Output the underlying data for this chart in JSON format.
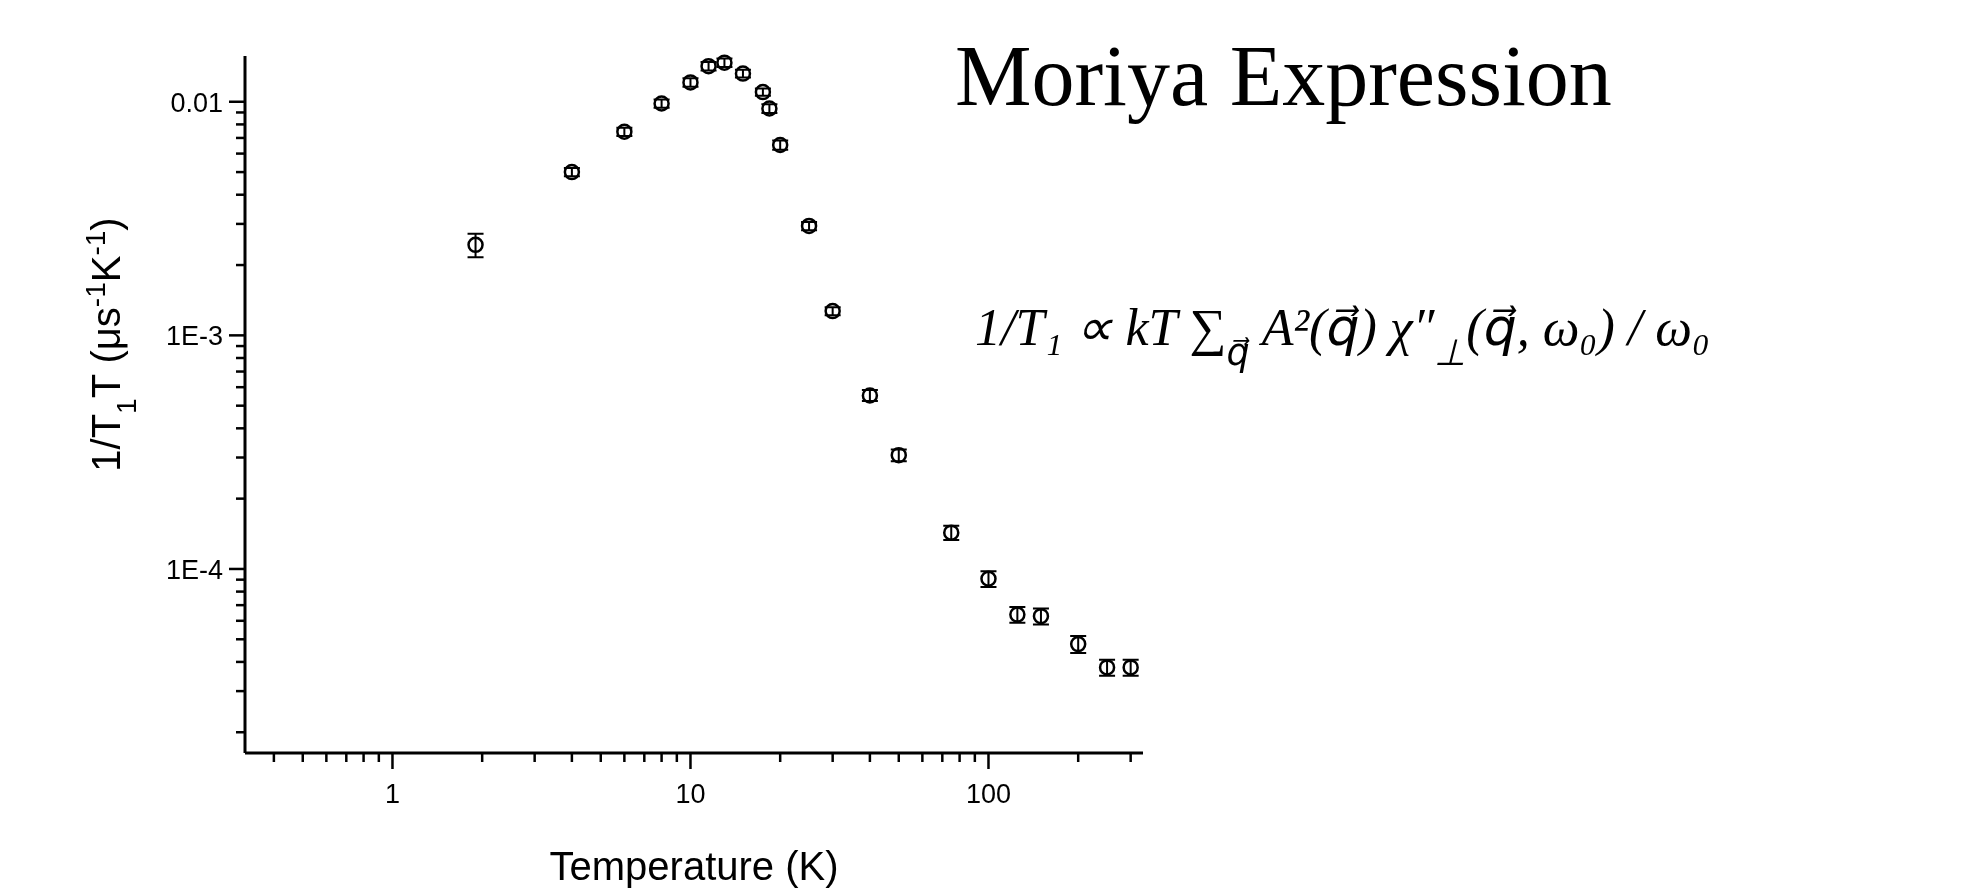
{
  "chart_data": {
    "type": "scatter",
    "title": "Moriya Expression",
    "xlabel": "Temperature (K)",
    "ylabel": "1/T$_{1}$T (μs$^{-1}$K$^{-1}$)",
    "annotations": [
      "1/T₁ ∝ kT ∑$_{q⃗}$ A²(q⃗) χ″$_{⊥}$(q⃗, ω₀) / ω₀"
    ],
    "log": "xy",
    "marker": "circle",
    "grid": false,
    "xlim": [
      0.32,
      330
    ],
    "ylim": [
      1.63e-05,
      0.0157
    ],
    "xticks": [
      {
        "value": 0.4,
        "label": null
      },
      {
        "value": 0.5,
        "label": null
      },
      {
        "value": 0.6,
        "label": null
      },
      {
        "value": 0.7,
        "label": null
      },
      {
        "value": 0.8,
        "label": null
      },
      {
        "value": 0.9,
        "label": null
      },
      1,
      {
        "value": 2,
        "label": null
      },
      {
        "value": 3,
        "label": null
      },
      {
        "value": 4,
        "label": null
      },
      {
        "value": 5,
        "label": null
      },
      {
        "value": 6,
        "label": null
      },
      {
        "value": 7,
        "label": null
      },
      {
        "value": 8,
        "label": null
      },
      {
        "value": 9,
        "label": null
      },
      10,
      {
        "value": 20,
        "label": null
      },
      {
        "value": 30,
        "label": null
      },
      {
        "value": 40,
        "label": null
      },
      {
        "value": 50,
        "label": null
      },
      {
        "value": 60,
        "label": null
      },
      {
        "value": 70,
        "label": null
      },
      {
        "value": 80,
        "label": null
      },
      {
        "value": 90,
        "label": null
      },
      100,
      {
        "value": 200,
        "label": null
      },
      {
        "value": 300,
        "label": null
      }
    ],
    "yticks": [
      {
        "value": 2e-05,
        "label": null
      },
      {
        "value": 3e-05,
        "label": null
      },
      {
        "value": 4e-05,
        "label": null
      },
      {
        "value": 5e-05,
        "label": null
      },
      {
        "value": 6e-05,
        "label": null
      },
      {
        "value": 7e-05,
        "label": null
      },
      {
        "value": 8e-05,
        "label": null
      },
      {
        "value": 9e-05,
        "label": null
      },
      {
        "value": 0.0001,
        "label": "1E-4"
      },
      {
        "value": 0.0002,
        "label": null
      },
      {
        "value": 0.0003,
        "label": null
      },
      {
        "value": 0.0004,
        "label": null
      },
      {
        "value": 0.0005,
        "label": null
      },
      {
        "value": 0.0006,
        "label": null
      },
      {
        "value": 0.0007,
        "label": null
      },
      {
        "value": 0.0008,
        "label": null
      },
      {
        "value": 0.0009,
        "label": null
      },
      {
        "value": 0.001,
        "label": "1E-3"
      },
      {
        "value": 0.002,
        "label": null
      },
      {
        "value": 0.003,
        "label": null
      },
      {
        "value": 0.004,
        "label": null
      },
      {
        "value": 0.005,
        "label": null
      },
      {
        "value": 0.006,
        "label": null
      },
      {
        "value": 0.007,
        "label": null
      },
      {
        "value": 0.008,
        "label": null
      },
      {
        "value": 0.009,
        "label": null
      },
      0.01
    ],
    "series": [
      {
        "color": "#000000",
        "x": [
          1.9,
          4,
          6,
          8,
          10,
          11.5,
          13,
          15,
          17.5,
          18.4,
          20,
          25,
          30,
          40,
          50,
          75,
          100,
          125,
          150,
          200,
          250,
          300
        ],
        "values": [
          0.00244,
          0.005,
          0.00744,
          0.00983,
          0.0121,
          0.0142,
          0.0147,
          0.0132,
          0.011,
          0.00936,
          0.00653,
          0.00294,
          0.00127,
          0.000553,
          0.000307,
          0.000143,
          9.08e-05,
          6.38e-05,
          6.28e-05,
          4.77e-05,
          3.79e-05,
          3.79e-05
        ],
        "errors": [
          0.00028,
          0.0002,
          0.0003,
          0.0004,
          0.0005,
          0.0006,
          0.0006,
          0.0005,
          0.0004,
          0.0004,
          0.0003,
          0.00012,
          5e-05,
          3e-05,
          1.8e-05,
          1e-05,
          7e-06,
          5e-06,
          5e-06,
          4e-06,
          3e-06,
          3e-06
        ]
      }
    ]
  }
}
